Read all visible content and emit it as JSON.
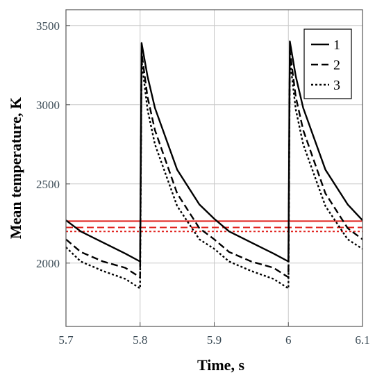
{
  "chart_data": {
    "type": "line",
    "xlabel": "Time, s",
    "ylabel": "Mean temperature, K",
    "xlim": [
      5.7,
      6.1
    ],
    "ylim": [
      1600,
      3600
    ],
    "xticks": [
      5.7,
      5.8,
      5.9,
      6.0,
      6.1
    ],
    "xtick_labels": [
      "5.7",
      "5.8",
      "5.9",
      "6",
      "6.1"
    ],
    "yticks": [
      2000,
      2500,
      3000,
      3500
    ],
    "ytick_labels": [
      "2000",
      "2500",
      "3000",
      "3500"
    ],
    "grid": true,
    "legend_position": "top-right",
    "series": [
      {
        "name": "1",
        "dash": "solid",
        "color": "#000000",
        "x": [
          5.7,
          5.72,
          5.75,
          5.78,
          5.8,
          5.8,
          5.802,
          5.81,
          5.82,
          5.85,
          5.88,
          5.9,
          5.92,
          5.95,
          5.98,
          6.0,
          6.0,
          6.002,
          6.01,
          6.02,
          6.05,
          6.08,
          6.1
        ],
        "y": [
          2270,
          2200,
          2130,
          2060,
          2010,
          2010,
          3390,
          3180,
          2980,
          2590,
          2370,
          2280,
          2200,
          2130,
          2060,
          2010,
          2010,
          3400,
          3180,
          2980,
          2590,
          2370,
          2270
        ]
      },
      {
        "name": "2",
        "dash": "dash",
        "color": "#000000",
        "x": [
          5.7,
          5.72,
          5.75,
          5.78,
          5.8,
          5.8,
          5.802,
          5.81,
          5.82,
          5.85,
          5.88,
          5.9,
          5.92,
          5.95,
          5.98,
          6.0,
          6.0,
          6.002,
          6.01,
          6.02,
          6.05,
          6.08,
          6.1
        ],
        "y": [
          2150,
          2070,
          2010,
          1970,
          1910,
          1910,
          3330,
          3050,
          2840,
          2440,
          2220,
          2150,
          2070,
          2010,
          1970,
          1910,
          1910,
          3340,
          3050,
          2840,
          2440,
          2220,
          2150
        ]
      },
      {
        "name": "3",
        "dash": "dot",
        "color": "#000000",
        "x": [
          5.7,
          5.72,
          5.75,
          5.78,
          5.8,
          5.8,
          5.802,
          5.81,
          5.82,
          5.85,
          5.88,
          5.9,
          5.92,
          5.95,
          5.98,
          6.0,
          6.0,
          6.002,
          6.01,
          6.02,
          6.05,
          6.08,
          6.1
        ],
        "y": [
          2100,
          2010,
          1950,
          1900,
          1840,
          1840,
          3280,
          2970,
          2750,
          2360,
          2150,
          2090,
          2010,
          1950,
          1900,
          1840,
          1840,
          3290,
          2970,
          2750,
          2360,
          2150,
          2090
        ]
      }
    ],
    "reference_lines": [
      {
        "y": 2265,
        "dash": "solid",
        "color": "#e0201c"
      },
      {
        "y": 2225,
        "dash": "dash",
        "color": "#e0201c"
      },
      {
        "y": 2200,
        "dash": "dot",
        "color": "#e0201c"
      }
    ]
  }
}
